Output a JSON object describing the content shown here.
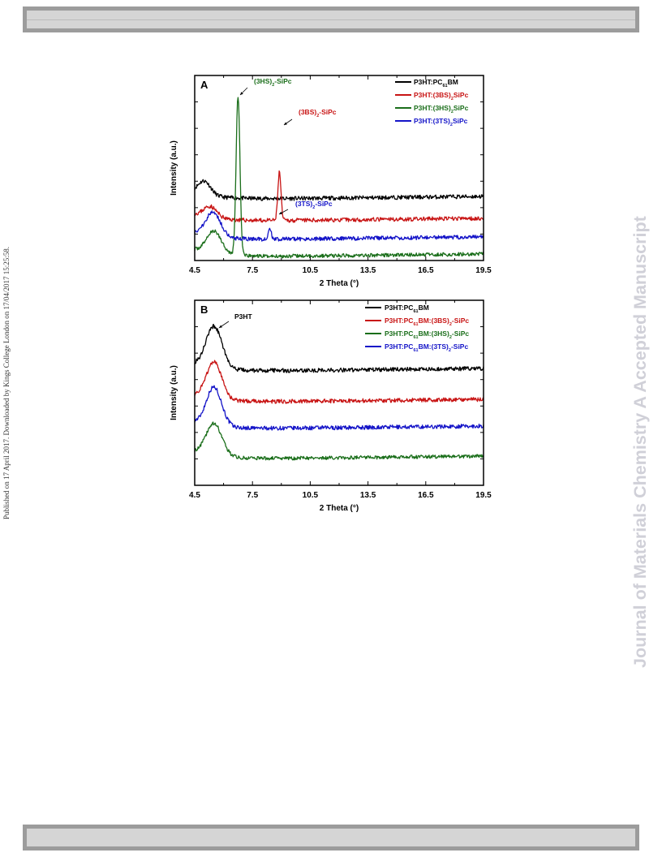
{
  "page": {
    "side_note": "Published on 17 April 2017. Downloaded by Kings College London on 17/04/2017 15:25:58.",
    "watermark": "Journal of Materials Chemistry A Accepted Manuscript"
  },
  "colors": {
    "black": "#000000",
    "red": "#c81414",
    "green": "#1a6e1a",
    "blue": "#1414c8"
  },
  "chart_data": [
    {
      "type": "line",
      "panel": "A",
      "xlabel": "2 Theta (°)",
      "ylabel": "Intensity (a.u.)",
      "xlim": [
        4.5,
        19.5
      ],
      "x_ticks": [
        "4.5",
        "7.5",
        "10.5",
        "13.5",
        "16.5",
        "19.5"
      ],
      "y_tick_labels": false,
      "legend_position": "top-right",
      "series": [
        {
          "name": "P3HT:PC61BM",
          "legend": [
            "P3HT:PC",
            "61",
            "BM",
            ""
          ],
          "color": "#000000",
          "offset": 73,
          "noise": 2.5,
          "seed": 11,
          "peaks": [
            {
              "x": 5.0,
              "h": 17,
              "w": 0.33
            }
          ]
        },
        {
          "name": "P3HT:(3BS)2SiPc",
          "legend": [
            "P3HT:(3BS)",
            "2",
            "SiPc",
            ""
          ],
          "color": "#c81414",
          "offset": 46,
          "noise": 2.5,
          "seed": 23,
          "peaks": [
            {
              "x": 5.3,
              "h": 14,
              "w": 0.35
            },
            {
              "x": 8.9,
              "h": 60,
              "w": 0.08
            }
          ]
        },
        {
          "name": "P3HT:(3HS)2SiPc",
          "legend": [
            "P3HT:(3HS)",
            "2",
            "SiPc",
            ""
          ],
          "color": "#1a6e1a",
          "offset": 2,
          "noise": 2.2,
          "seed": 37,
          "peaks": [
            {
              "x": 5.5,
              "h": 28,
              "w": 0.4
            },
            {
              "x": 6.75,
              "h": 196,
              "w": 0.1
            }
          ]
        },
        {
          "name": "P3HT:(3TS)2SiPc",
          "legend": [
            "P3HT:(3TS)",
            "2",
            "SiPc",
            ""
          ],
          "color": "#1414c8",
          "offset": 23,
          "noise": 2.5,
          "seed": 51,
          "peaks": [
            {
              "x": 5.45,
              "h": 30,
              "w": 0.4
            },
            {
              "x": 8.4,
              "h": 12,
              "w": 0.08
            }
          ]
        }
      ],
      "annotations": [
        {
          "parts": [
            "(3HS)",
            "2",
            "-SiPc"
          ],
          "color": "#1a6e1a",
          "x": 6.75
        },
        {
          "parts": [
            "(3BS)",
            "2",
            "-SiPc"
          ],
          "color": "#c81414",
          "x": 8.9
        },
        {
          "parts": [
            "(3TS)",
            "2",
            "-SiPc"
          ],
          "color": "#1414c8",
          "x": 8.4
        }
      ]
    },
    {
      "type": "line",
      "panel": "B",
      "xlabel": "2 Theta (°)",
      "ylabel": "Intensity (a.u.)",
      "xlim": [
        4.5,
        19.5
      ],
      "x_ticks": [
        "4.5",
        "7.5",
        "10.5",
        "13.5",
        "16.5",
        "19.5"
      ],
      "y_tick_labels": false,
      "legend_position": "top-right",
      "series": [
        {
          "name": "P3HT:PC61BM",
          "legend": [
            "P3HT:PC",
            "61",
            "BM",
            ""
          ],
          "color": "#000000",
          "offset": 138,
          "noise": 2.5,
          "seed": 61,
          "peaks": [
            {
              "x": 5.5,
              "h": 52,
              "w": 0.42
            }
          ]
        },
        {
          "name": "P3HT:PC61BM:(3BS)2-SiPc",
          "legend": [
            "P3HT:PC",
            "61",
            "BM:(3BS)",
            "2",
            "-SiPc"
          ],
          "color": "#c81414",
          "offset": 100,
          "noise": 2.5,
          "seed": 71,
          "peaks": [
            {
              "x": 5.5,
              "h": 46,
              "w": 0.4
            }
          ]
        },
        {
          "name": "P3HT:PC61BM:(3HS)2-SiPc",
          "legend": [
            "P3HT:PC",
            "61",
            "BM:(3HS)",
            "2",
            "-SiPc"
          ],
          "color": "#1a6e1a",
          "offset": 30,
          "noise": 2.2,
          "seed": 83,
          "peaks": [
            {
              "x": 5.5,
              "h": 40,
              "w": 0.42
            }
          ]
        },
        {
          "name": "P3HT:PC61BM:(3TS)2-SiPc",
          "legend": [
            "P3HT:PC",
            "61",
            "BM:(3TS)",
            "2",
            "-SiPc"
          ],
          "color": "#1414c8",
          "offset": 67,
          "noise": 2.5,
          "seed": 97,
          "peaks": [
            {
              "x": 5.5,
              "h": 48,
              "w": 0.4
            }
          ]
        }
      ],
      "annotations": [
        {
          "parts": [
            "P3HT",
            "",
            ""
          ],
          "color": "#000000",
          "x": 5.5
        }
      ]
    }
  ]
}
